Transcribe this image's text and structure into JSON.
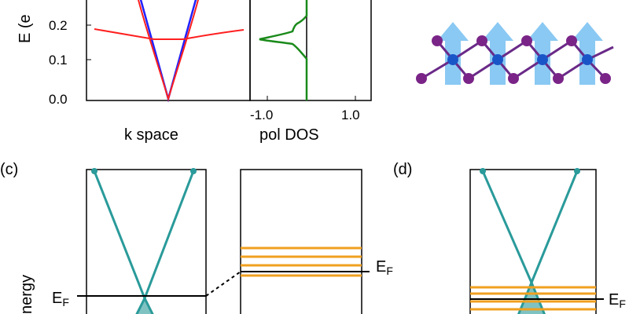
{
  "top_band_plot": {
    "ylabel": "E (eV)",
    "ylabel_visible": "E (e",
    "xlabel": "k space",
    "yticks": [
      "0.0",
      "0.1",
      "0.2"
    ]
  },
  "top_dos_plot": {
    "xlabel": "pol DOS",
    "xticks": [
      "-1.0",
      "1.0"
    ]
  },
  "panel_c": {
    "label": "(c)",
    "energy_axis_label": "nergy",
    "fermi_left": "E",
    "fermi_left_sub": "F",
    "fermi_right": "E",
    "fermi_right_sub": "F"
  },
  "panel_d": {
    "label": "(d)",
    "fermi_label": "E",
    "fermi_sub": "F"
  },
  "colors": {
    "band_red": "#ff2020",
    "band_blue": "#2020ff",
    "dos_green": "#1a8a1a",
    "cone_teal": "#2a9a9a",
    "level_orange": "#f0a020",
    "arrow_blue": "#7ec4f2",
    "atom_blue": "#1a55c8",
    "atom_purple": "#7a2488"
  },
  "chart_data": [
    {
      "type": "line",
      "ylabel": "E (eV)",
      "xlabel": "k space",
      "ylim": [
        0.0,
        0.25
      ],
      "yticks": [
        0.0,
        0.1,
        0.2
      ],
      "series": [
        {
          "k": [
            -1.0,
            -0.5,
            -0.3,
            -0.1,
            0.0,
            0.1,
            0.3,
            0.5,
            1.0
          ],
          "E": [
            0.25,
            0.12,
            0.072,
            0.024,
            0.0,
            0.024,
            0.072,
            0.12,
            0.25
          ]
        },
        {
          "k": [
            -1.0,
            -0.6,
            -0.3,
            -0.15,
            0.0,
            0.15,
            0.3,
            0.6,
            1.0
          ],
          "E": [
            0.18,
            0.17,
            0.165,
            0.158,
            0.155,
            0.158,
            0.165,
            0.17,
            0.18
          ]
        }
      ]
    },
    {
      "type": "line",
      "xlabel": "pol DOS",
      "xticks": [
        -1.0,
        1.0
      ],
      "series": [
        {
          "E": [
            0.0,
            0.1,
            0.14,
            0.15,
            0.155,
            0.16,
            0.18,
            0.2,
            0.21,
            0.25
          ],
          "pol": [
            0.0,
            0.0,
            -0.15,
            -0.7,
            -0.85,
            -0.5,
            -0.05,
            -0.05,
            0.0,
            0.0
          ]
        }
      ]
    }
  ]
}
